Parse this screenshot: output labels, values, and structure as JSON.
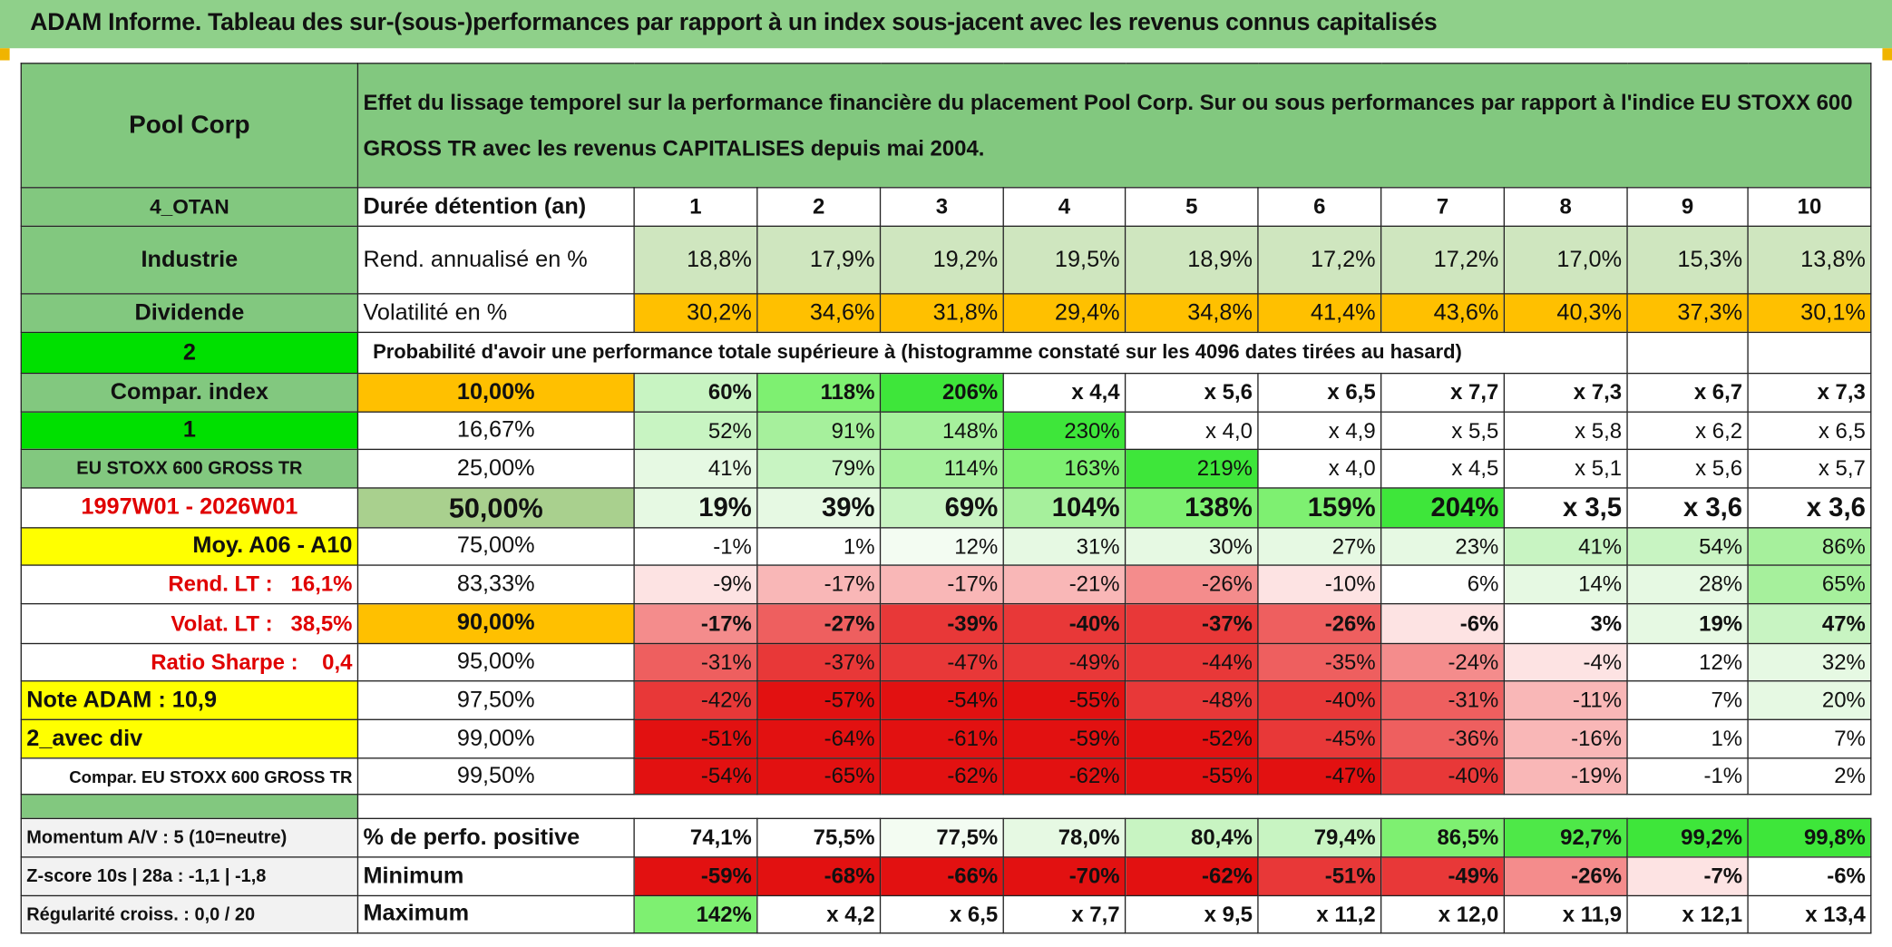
{
  "title": "ADAM Informe. Tableau des sur-(sous-)performances par rapport à un index sous-jacent avec les revenus connus capitalisés",
  "table": {
    "rows": [
      {
        "cells": [
          "Pool Corp",
          "Effet du lissage temporel sur la performance financière du placement Pool Corp. Sur ou sous performances par rapport à l'indice EU STOXX 600 GROSS TR avec les revenus CAPITALISES depuis mai 2004."
        ],
        "fills": [
          "#82c87f",
          "#82c87f"
        ]
      },
      {
        "cells": [
          "4_OTAN",
          "Durée détention (an)",
          "1",
          "2",
          "3",
          "4",
          "5",
          "6",
          "7",
          "8",
          "9",
          "10"
        ],
        "fills": [
          "#82c87f",
          "#ffffff",
          "#ffffff",
          "#ffffff",
          "#ffffff",
          "#ffffff",
          "#ffffff",
          "#ffffff",
          "#ffffff",
          "#ffffff",
          "#ffffff",
          "#ffffff"
        ]
      },
      {
        "cells": [
          "Industrie",
          "Rend. annualisé en %",
          "18,8%",
          "17,9%",
          "19,2%",
          "19,5%",
          "18,9%",
          "17,2%",
          "17,2%",
          "17,0%",
          "15,3%",
          "13,8%"
        ],
        "fills": [
          "#82c87f",
          "#ffffff",
          "#cfe6bf",
          "#cfe6bf",
          "#cfe6bf",
          "#cfe6bf",
          "#cfe6bf",
          "#cfe6bf",
          "#cfe6bf",
          "#cfe6bf",
          "#cfe6bf",
          "#cfe6bf"
        ]
      },
      {
        "cells": [
          "Dividende",
          "Volatilité en %",
          "30,2%",
          "34,6%",
          "31,8%",
          "29,4%",
          "34,8%",
          "41,4%",
          "43,6%",
          "40,3%",
          "37,3%",
          "30,1%"
        ],
        "fills": [
          "#82c87f",
          "#ffffff",
          "#ffc000",
          "#ffc000",
          "#ffc000",
          "#ffc000",
          "#ffc000",
          "#ffc000",
          "#ffc000",
          "#ffc000",
          "#ffc000",
          "#ffc000"
        ]
      },
      {
        "cells": [
          "2",
          "Probabilité d'avoir une performance totale supérieure à (histogramme constaté sur les 4096 dates tirées au hasard)"
        ],
        "fills": [
          "#00e000",
          "#ffffff"
        ]
      },
      {
        "cells": [
          "Compar. index",
          "10,00%",
          "60%",
          "118%",
          "206%",
          "x 4,4",
          "x 5,6",
          "x 6,5",
          "x 7,7",
          "x 7,3",
          "x 6,7",
          "x 7,3"
        ],
        "fills": [
          "#82c87f",
          "#ffc000",
          "#c8f4c2",
          "#7ef071",
          "#3ee63a",
          "#ffffff",
          "#ffffff",
          "#ffffff",
          "#ffffff",
          "#ffffff",
          "#ffffff",
          "#ffffff"
        ]
      },
      {
        "cells": [
          "1",
          "16,67%",
          "52%",
          "91%",
          "148%",
          "230%",
          "x 4,0",
          "x 4,9",
          "x 5,5",
          "x 5,8",
          "x 6,2",
          "x 6,5"
        ],
        "fills": [
          "#00e000",
          "#ffffff",
          "#c8f4c2",
          "#a6f09c",
          "#a6f09c",
          "#3ee63a",
          "#ffffff",
          "#ffffff",
          "#ffffff",
          "#ffffff",
          "#ffffff",
          "#ffffff"
        ]
      },
      {
        "cells": [
          "EU STOXX 600 GROSS TR",
          "25,00%",
          "41%",
          "79%",
          "114%",
          "163%",
          "219%",
          "x 4,0",
          "x 4,5",
          "x 5,1",
          "x 5,6",
          "x 5,7"
        ],
        "fills": [
          "#82c87f",
          "#ffffff",
          "#e6f9e3",
          "#c8f4c2",
          "#a6f09c",
          "#7ef071",
          "#3ee63a",
          "#ffffff",
          "#ffffff",
          "#ffffff",
          "#ffffff",
          "#ffffff"
        ]
      },
      {
        "cells": [
          "1997W01 - 2026W01",
          "50,00%",
          "19%",
          "39%",
          "69%",
          "104%",
          "138%",
          "159%",
          "204%",
          "x 3,5",
          "x 3,6",
          "x 3,6"
        ],
        "fills": [
          "#ffffff",
          "#a9d08e",
          "#e6f9e3",
          "#e6f9e3",
          "#c8f4c2",
          "#a6f09c",
          "#7ef071",
          "#7ef071",
          "#3ee63a",
          "#ffffff",
          "#ffffff",
          "#ffffff"
        ]
      },
      {
        "cells": [
          "Moy. A06 - A10",
          "75,00%",
          "-1%",
          "1%",
          "12%",
          "31%",
          "30%",
          "27%",
          "23%",
          "41%",
          "54%",
          "86%"
        ],
        "fills": [
          "#ffff00",
          "#ffffff",
          "#ffffff",
          "#ffffff",
          "#f3fcf2",
          "#e6f9e3",
          "#e6f9e3",
          "#e6f9e3",
          "#e6f9e3",
          "#c8f4c2",
          "#c8f4c2",
          "#a6f09c"
        ]
      },
      {
        "cells": [
          "Rend. LT :   16,1%",
          "83,33%",
          "-9%",
          "-17%",
          "-17%",
          "-21%",
          "-26%",
          "-10%",
          "6%",
          "14%",
          "28%",
          "65%"
        ],
        "fills": [
          "#ffffff",
          "#ffffff",
          "#fde3e3",
          "#f9b7b7",
          "#f9b7b7",
          "#f9b7b7",
          "#f48c8c",
          "#fde3e3",
          "#ffffff",
          "#e6f9e3",
          "#e6f9e3",
          "#a6f09c"
        ]
      },
      {
        "cells": [
          "Volat. LT :   38,5%",
          "90,00%",
          "-17%",
          "-27%",
          "-39%",
          "-40%",
          "-37%",
          "-26%",
          "-6%",
          "3%",
          "19%",
          "47%"
        ],
        "fills": [
          "#ffffff",
          "#ffc000",
          "#f48c8c",
          "#ee5f5f",
          "#e83838",
          "#e83838",
          "#e83838",
          "#ee5f5f",
          "#fde3e3",
          "#ffffff",
          "#e6f9e3",
          "#c8f4c2"
        ]
      },
      {
        "cells": [
          "Ratio Sharpe :    0,4",
          "95,00%",
          "-31%",
          "-37%",
          "-47%",
          "-49%",
          "-44%",
          "-35%",
          "-24%",
          "-4%",
          "12%",
          "32%"
        ],
        "fills": [
          "#ffffff",
          "#ffffff",
          "#ee5f5f",
          "#e83838",
          "#e83838",
          "#e83838",
          "#e83838",
          "#ee5f5f",
          "#f48c8c",
          "#fde3e3",
          "#ffffff",
          "#e6f9e3"
        ]
      },
      {
        "cells": [
          "Note ADAM : 10,9",
          "97,50%",
          "-42%",
          "-57%",
          "-54%",
          "-55%",
          "-48%",
          "-40%",
          "-31%",
          "-11%",
          "7%",
          "20%"
        ],
        "fills": [
          "#ffff00",
          "#ffffff",
          "#e83838",
          "#e21111",
          "#e21111",
          "#e21111",
          "#e83838",
          "#e83838",
          "#ee5f5f",
          "#f9b7b7",
          "#ffffff",
          "#e6f9e3"
        ]
      },
      {
        "cells": [
          "2_avec div",
          "99,00%",
          "-51%",
          "-64%",
          "-61%",
          "-59%",
          "-52%",
          "-45%",
          "-36%",
          "-16%",
          "1%",
          "7%"
        ],
        "fills": [
          "#ffff00",
          "#ffffff",
          "#e21111",
          "#e21111",
          "#e21111",
          "#e21111",
          "#e21111",
          "#e83838",
          "#ee5f5f",
          "#f9b7b7",
          "#ffffff",
          "#ffffff"
        ]
      },
      {
        "cells": [
          "Compar. EU STOXX 600 GROSS TR",
          "99,50%",
          "-54%",
          "-65%",
          "-62%",
          "-62%",
          "-55%",
          "-47%",
          "-40%",
          "-19%",
          "-1%",
          "2%"
        ],
        "fills": [
          "#ffffff",
          "#ffffff",
          "#e21111",
          "#e21111",
          "#e21111",
          "#e21111",
          "#e21111",
          "#e21111",
          "#e83838",
          "#f9b7b7",
          "#ffffff",
          "#ffffff"
        ]
      },
      {
        "cells": [],
        "fills": [
          "#82c87f"
        ]
      },
      {
        "cells": [
          "Momentum A/V : 5 (10=neutre)",
          "% de perfo. positive",
          "74,1%",
          "75,5%",
          "77,5%",
          "78,0%",
          "80,4%",
          "79,4%",
          "86,5%",
          "92,7%",
          "99,2%",
          "99,8%"
        ],
        "fills": [
          "#f2f2f2",
          "#ffffff",
          "#ffffff",
          "#ffffff",
          "#f3fcf2",
          "#e6f9e3",
          "#c8f4c2",
          "#c8f4c2",
          "#7ef071",
          "#4ee848",
          "#3ee63a",
          "#3ee63a"
        ]
      },
      {
        "cells": [
          "Z-score 10s | 28a : -1,1 | -1,8",
          "Minimum",
          "-59%",
          "-68%",
          "-66%",
          "-70%",
          "-62%",
          "-51%",
          "-49%",
          "-26%",
          "-7%",
          "-6%"
        ],
        "fills": [
          "#f2f2f2",
          "#ffffff",
          "#e21111",
          "#e21111",
          "#e21111",
          "#e21111",
          "#e21111",
          "#e83838",
          "#e83838",
          "#f48c8c",
          "#fde3e3",
          "#ffffff"
        ]
      },
      {
        "cells": [
          "Régularité croiss. : 0,0 / 20",
          "Maximum",
          "142%",
          "x 4,2",
          "x 6,5",
          "x 7,7",
          "x 9,5",
          "x 11,2",
          "x 12,0",
          "x 11,9",
          "x 12,1",
          "x 13,4"
        ],
        "fills": [
          "#f2f2f2",
          "#ffffff",
          "#7ef071",
          "#ffffff",
          "#ffffff",
          "#ffffff",
          "#ffffff",
          "#ffffff",
          "#ffffff",
          "#ffffff",
          "#ffffff",
          "#ffffff"
        ]
      }
    ]
  }
}
